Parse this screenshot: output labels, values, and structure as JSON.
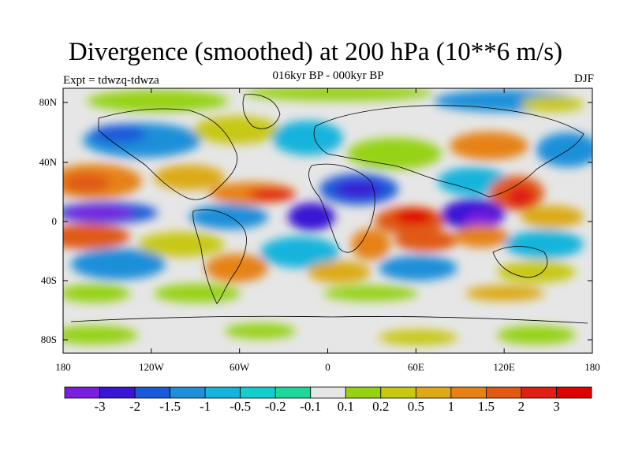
{
  "title": "Divergence (smoothed) at 200 hPa (10**6 m/s)",
  "subtitle": "016kyr BP - 000kyr BP",
  "experiment": "Expt = tdwzq-tdwza",
  "season": "DJF",
  "lat_ticks": [
    "80N",
    "40N",
    "0",
    "40S",
    "80S"
  ],
  "lon_ticks": [
    "180",
    "120W",
    "60W",
    "0",
    "60E",
    "120E",
    "180"
  ],
  "colorbar": {
    "labels": [
      "-3",
      "-2",
      "-1.5",
      "-1",
      "-0.5",
      "-0.2",
      "-0.1",
      "0.1",
      "0.2",
      "0.5",
      "1",
      "1.5",
      "2",
      "3"
    ],
    "colors": [
      "#7a1ee0",
      "#3a16d4",
      "#1a5ad9",
      "#1e8fd9",
      "#14b4dc",
      "#14cdcd",
      "#20d69a",
      "#e6e6e6",
      "#96d214",
      "#c8c814",
      "#dcaa14",
      "#e68214",
      "#e05a14",
      "#e01e14",
      "#e00000"
    ]
  }
}
